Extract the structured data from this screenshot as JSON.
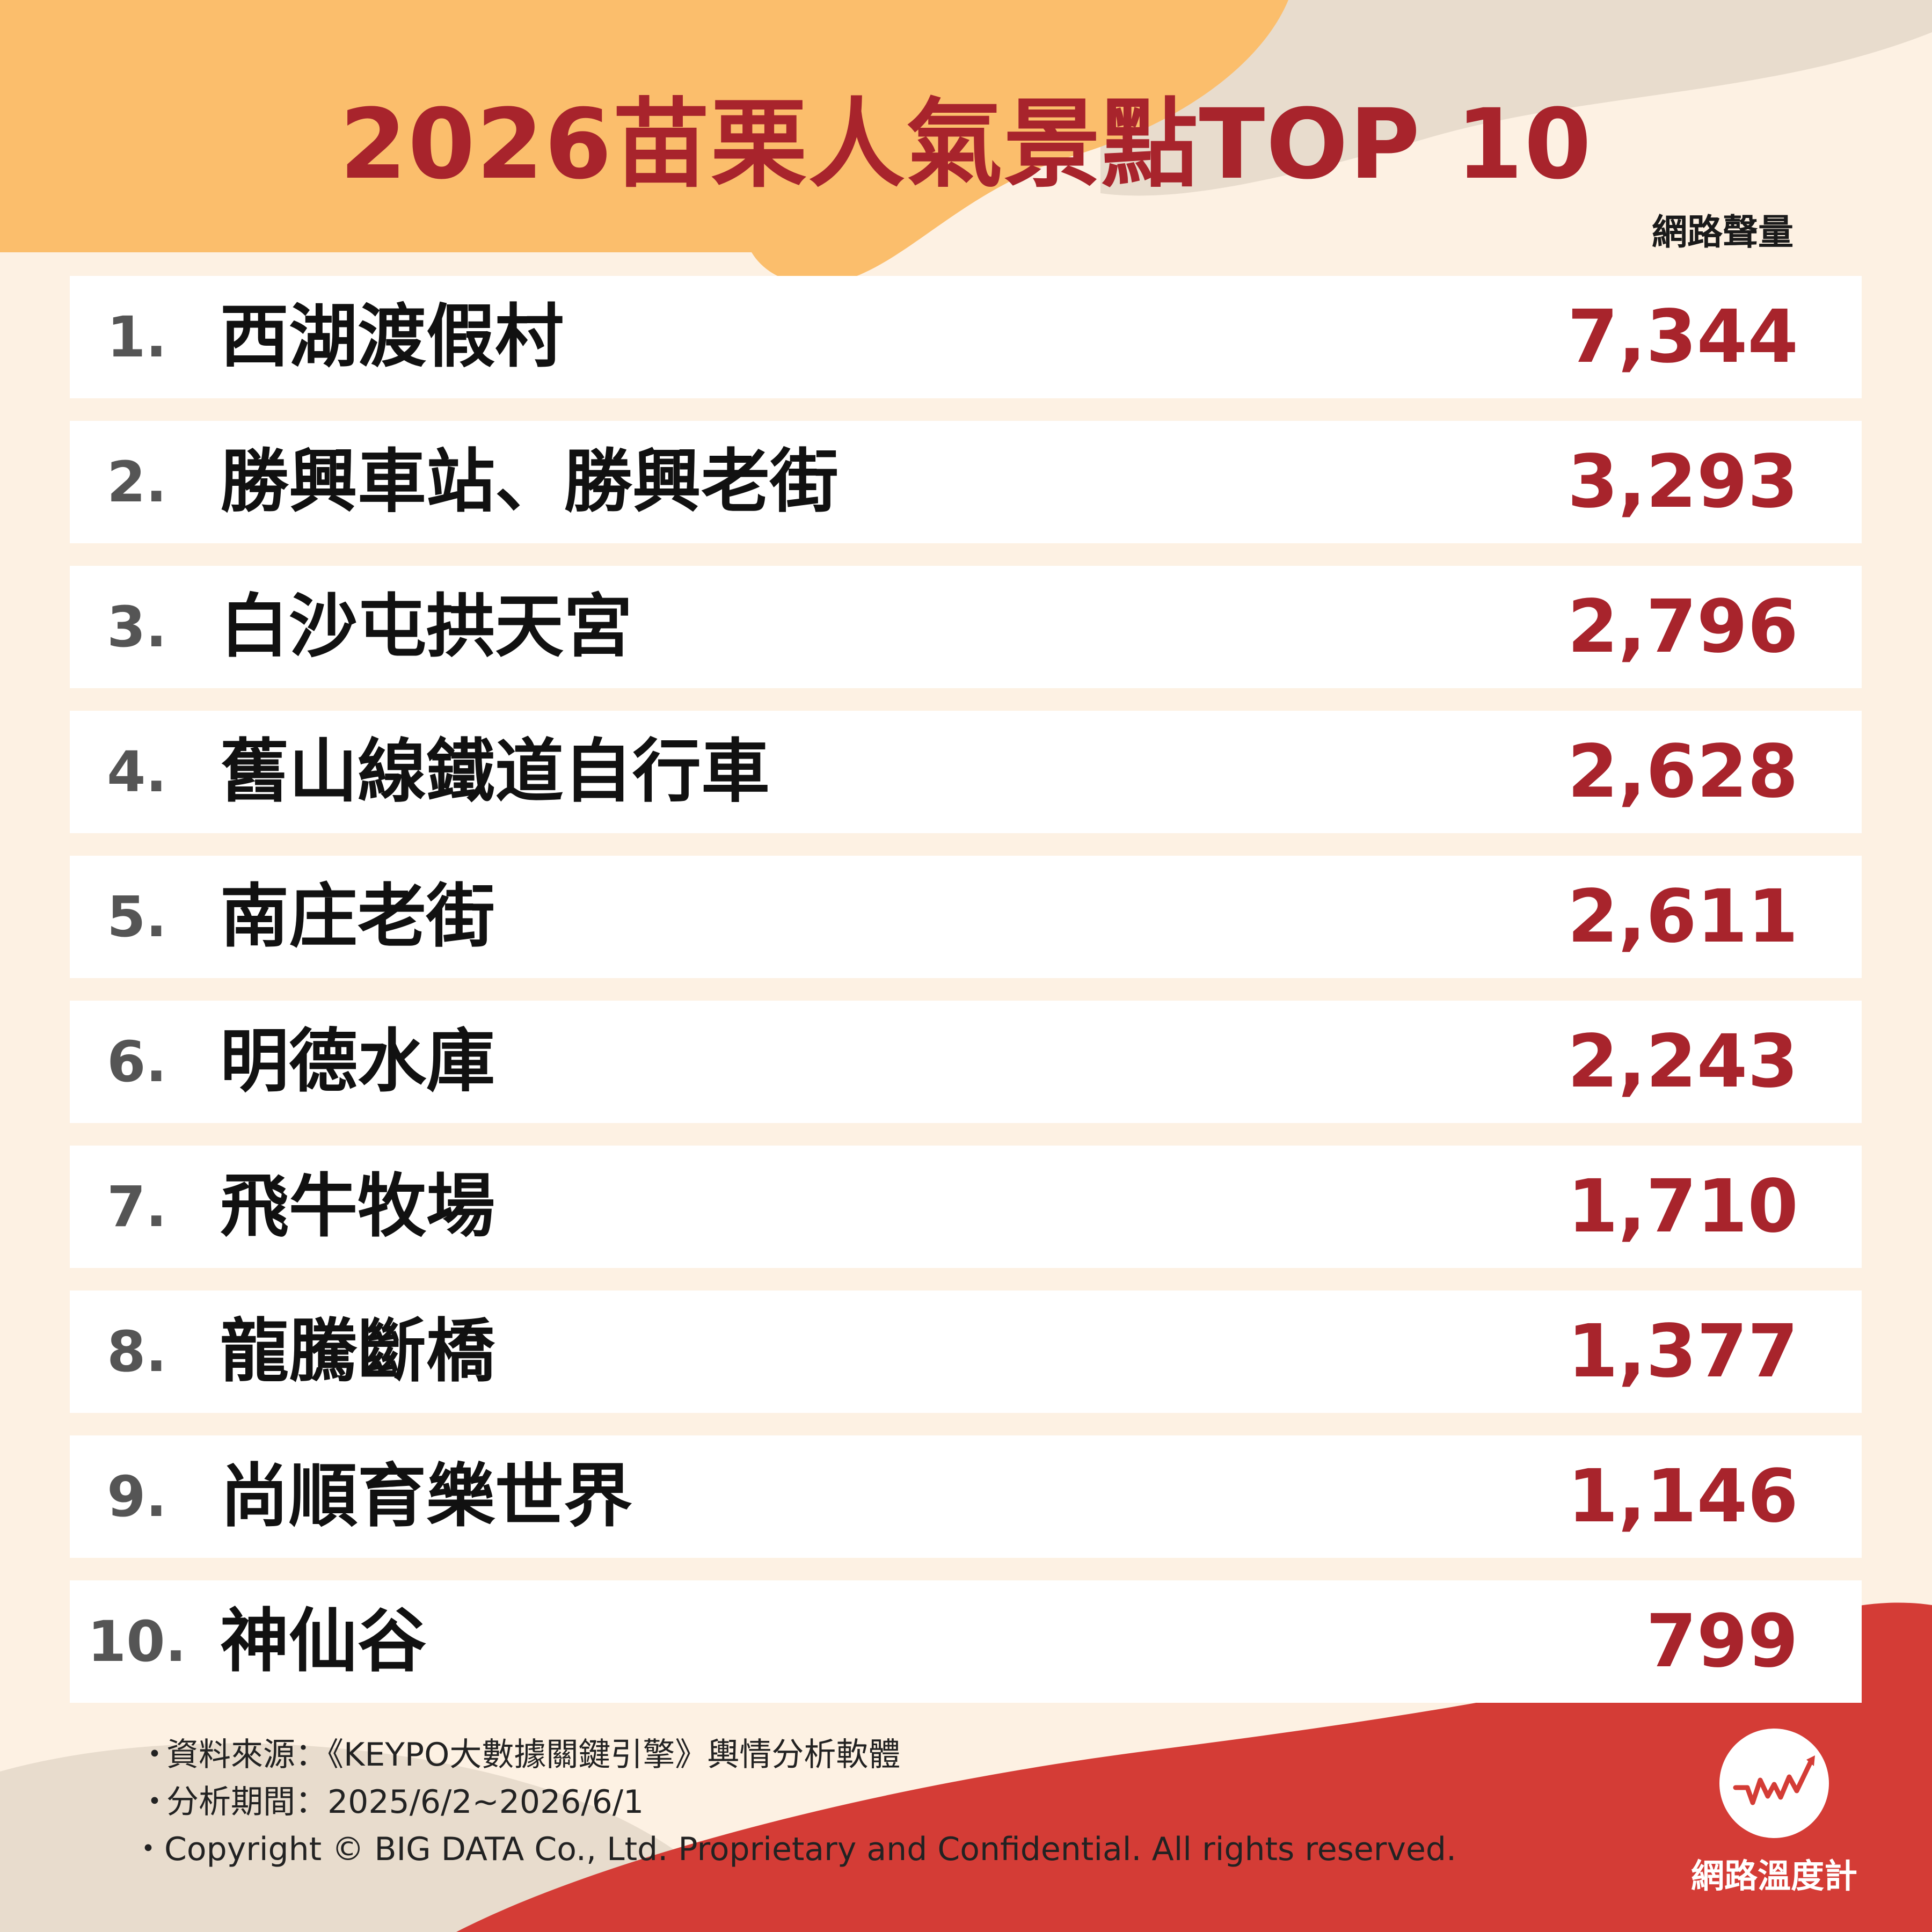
{
  "title": "2026苗栗人氣景點TOP 10",
  "column_header": "網路聲量",
  "colors": {
    "accent": "#a8242c",
    "background": "#fdf1e3",
    "orange_blob": "#fbbe6c",
    "beige_blob": "#e8dccd",
    "red_blob": "#d43c36"
  },
  "chart_data": {
    "type": "table",
    "title": "2026苗栗人氣景點TOP 10",
    "columns": [
      "",
      "",
      "網路聲量"
    ],
    "ranks": [
      "1.",
      "2.",
      "3.",
      "4.",
      "5.",
      "6.",
      "7.",
      "8.",
      "9.",
      "10."
    ],
    "categories": [
      "西湖渡假村",
      "勝興車站、勝興老街",
      "白沙屯拱天宮",
      "舊山線鐵道自行車",
      "南庄老街",
      "明德水庫",
      "飛牛牧場",
      "龍騰斷橋",
      "尚順育樂世界",
      "神仙谷"
    ],
    "values": [
      7344,
      3293,
      2796,
      2628,
      2611,
      2243,
      1710,
      1377,
      1146,
      799
    ],
    "value_labels": [
      "7,344",
      "3,293",
      "2,796",
      "2,628",
      "2,611",
      "2,243",
      "1,710",
      "1,377",
      "1,146",
      "799"
    ]
  },
  "footer": {
    "bullet": "・",
    "source": "資料來源：《KEYPO大數據關鍵引擎》輿情分析軟體",
    "period": "分析期間：2025/6/2~2026/6/1",
    "copyright": "・Copyright © BIG DATA Co., Ltd. Proprietary and Confidential. All rights reserved."
  },
  "logo": {
    "icon": "line-trend-icon",
    "text": "網路溫度計"
  }
}
